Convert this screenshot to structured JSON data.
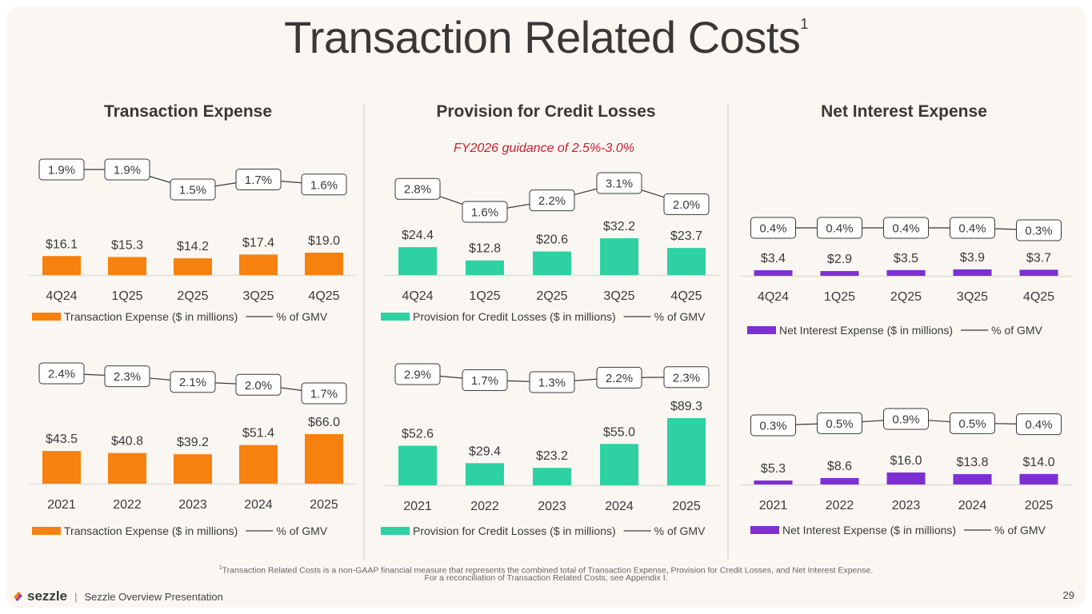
{
  "title": "Transaction Related Costs",
  "title_superscript": "1",
  "sections": [
    {
      "title": "Transaction Expense"
    },
    {
      "title": "Provision for Credit Losses",
      "guidance": "FY2026 guidance of 2.5%-3.0%"
    },
    {
      "title": "Net Interest Expense"
    }
  ],
  "colors": {
    "transaction": "#f7810e",
    "credit": "#2ed1a2",
    "interest": "#7d2fd4",
    "line": "#3a3a3a",
    "guidance": "#c8202f"
  },
  "chart_data": [
    {
      "type": "bar",
      "id": "te-quarterly",
      "categories": [
        "4Q24",
        "1Q25",
        "2Q25",
        "3Q25",
        "4Q25"
      ],
      "series": [
        {
          "name": "Transaction Expense ($ in millions)",
          "kind": "bar",
          "values": [
            16.1,
            15.3,
            14.2,
            17.4,
            19.0
          ],
          "labels": [
            "$16.1",
            "$15.3",
            "$14.2",
            "$17.4",
            "$19.0"
          ]
        },
        {
          "name": "% of GMV",
          "kind": "line",
          "values": [
            1.9,
            1.9,
            1.5,
            1.7,
            1.6
          ],
          "labels": [
            "1.9%",
            "1.9%",
            "1.5%",
            "1.7%",
            "1.6%"
          ]
        }
      ],
      "legend": {
        "bar": "Transaction Expense ($ in millions)",
        "line": "% of GMV",
        "position": "bottom"
      }
    },
    {
      "type": "bar",
      "id": "te-annual",
      "categories": [
        "2021",
        "2022",
        "2023",
        "2024",
        "2025"
      ],
      "series": [
        {
          "name": "Transaction Expense ($ in millions)",
          "kind": "bar",
          "values": [
            43.5,
            40.8,
            39.2,
            51.4,
            66.0
          ],
          "labels": [
            "$43.5",
            "$40.8",
            "$39.2",
            "$51.4",
            "$66.0"
          ]
        },
        {
          "name": "% of GMV",
          "kind": "line",
          "values": [
            2.4,
            2.3,
            2.1,
            2.0,
            1.7
          ],
          "labels": [
            "2.4%",
            "2.3%",
            "2.1%",
            "2.0%",
            "1.7%"
          ]
        }
      ],
      "legend": {
        "bar": "Transaction Expense ($ in millions)",
        "line": "% of GMV",
        "position": "bottom"
      }
    },
    {
      "type": "bar",
      "id": "pcl-quarterly",
      "categories": [
        "4Q24",
        "1Q25",
        "2Q25",
        "3Q25",
        "4Q25"
      ],
      "series": [
        {
          "name": "Provision for Credit Losses ($ in millions)",
          "kind": "bar",
          "values": [
            24.4,
            12.8,
            20.6,
            32.2,
            23.7
          ],
          "labels": [
            "$24.4",
            "$12.8",
            "$20.6",
            "$32.2",
            "$23.7"
          ]
        },
        {
          "name": "% of GMV",
          "kind": "line",
          "values": [
            2.8,
            1.6,
            2.2,
            3.1,
            2.0
          ],
          "labels": [
            "2.8%",
            "1.6%",
            "2.2%",
            "3.1%",
            "2.0%"
          ]
        }
      ],
      "legend": {
        "bar": "Provision for Credit Losses ($ in millions)",
        "line": "% of GMV",
        "position": "bottom"
      }
    },
    {
      "type": "bar",
      "id": "pcl-annual",
      "categories": [
        "2021",
        "2022",
        "2023",
        "2024",
        "2025"
      ],
      "series": [
        {
          "name": "Provision for Credit Losses ($ in millions)",
          "kind": "bar",
          "values": [
            52.6,
            29.4,
            23.2,
            55.0,
            89.3
          ],
          "labels": [
            "$52.6",
            "$29.4",
            "$23.2",
            "$55.0",
            "$89.3"
          ]
        },
        {
          "name": "% of GMV",
          "kind": "line",
          "values": [
            2.9,
            1.7,
            1.3,
            2.2,
            2.3
          ],
          "labels": [
            "2.9%",
            "1.7%",
            "1.3%",
            "2.2%",
            "2.3%"
          ]
        }
      ],
      "legend": {
        "bar": "Provision for Credit Losses ($ in millions)",
        "line": "% of GMV",
        "position": "bottom"
      }
    },
    {
      "type": "bar",
      "id": "nie-quarterly",
      "categories": [
        "4Q24",
        "1Q25",
        "2Q25",
        "3Q25",
        "4Q25"
      ],
      "series": [
        {
          "name": "Net Interest Expense ($ in millions)",
          "kind": "bar",
          "values": [
            3.4,
            2.9,
            3.5,
            3.9,
            3.7
          ],
          "labels": [
            "$3.4",
            "$2.9",
            "$3.5",
            "$3.9",
            "$3.7"
          ]
        },
        {
          "name": "% of GMV",
          "kind": "line",
          "values": [
            0.4,
            0.4,
            0.4,
            0.4,
            0.3
          ],
          "labels": [
            "0.4%",
            "0.4%",
            "0.4%",
            "0.4%",
            "0.3%"
          ]
        }
      ],
      "legend": {
        "bar": "Net Interest Expense ($ in millions)",
        "line": "% of GMV",
        "position": "bottom"
      }
    },
    {
      "type": "bar",
      "id": "nie-annual",
      "categories": [
        "2021",
        "2022",
        "2023",
        "2024",
        "2025"
      ],
      "series": [
        {
          "name": "Net Interest Expense ($ in millions)",
          "kind": "bar",
          "values": [
            5.3,
            8.6,
            16.0,
            13.8,
            14.0
          ],
          "labels": [
            "$5.3",
            "$8.6",
            "$16.0",
            "$13.8",
            "$14.0"
          ]
        },
        {
          "name": "% of GMV",
          "kind": "line",
          "values": [
            0.3,
            0.5,
            0.9,
            0.5,
            0.4
          ],
          "labels": [
            "0.3%",
            "0.5%",
            "0.9%",
            "0.5%",
            "0.4%"
          ]
        }
      ],
      "legend": {
        "bar": "Net Interest Expense ($ in millions)",
        "line": "% of GMV",
        "position": "bottom"
      }
    }
  ],
  "footnote": {
    "marker": "1",
    "line1": "Transaction Related Costs is a non-GAAP financial measure that represents the combined total of Transaction Expense, Provision for Credit Losses, and Net Interest Expense.",
    "line2": "For a reconciliation of Transaction Related Costs, see Appendix I."
  },
  "footer": {
    "brand": "sezzle",
    "separator": "|",
    "presentation": "Sezzle Overview Presentation",
    "page": "29"
  }
}
